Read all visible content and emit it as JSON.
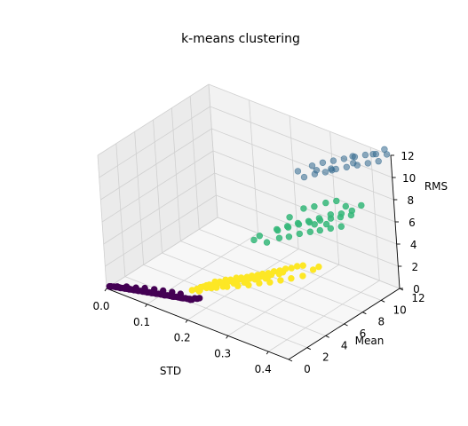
{
  "chart_data": {
    "type": "scatter",
    "projection": "3d",
    "title": "k-means clustering",
    "xlabel": "STD",
    "ylabel": "Mean",
    "zlabel": "RMS",
    "xlim": [
      0.0,
      0.45
    ],
    "ylim": [
      0,
      12
    ],
    "zlim": [
      0,
      12
    ],
    "xticks": [
      "0.0",
      "0.1",
      "0.2",
      "0.3",
      "0.4"
    ],
    "yticks": [
      "0",
      "2",
      "4",
      "6",
      "8",
      "10",
      "12"
    ],
    "zticks": [
      "0",
      "2",
      "4",
      "6",
      "8",
      "10",
      "12"
    ],
    "grid": true,
    "colors": {
      "cluster_0": "#440154",
      "cluster_1": "#31688e",
      "cluster_2": "#35b779",
      "cluster_3": "#fde725",
      "pane_left": "#ebebeb",
      "pane_back": "#f2f2f2",
      "pane_floor": "#f7f7f7",
      "grid": "#d0d0d0"
    },
    "series": [
      {
        "cluster": 0,
        "color": "#440154",
        "alpha": 1.0,
        "points": [
          [
            0.005,
            0.1,
            0.2
          ],
          [
            0.01,
            0.12,
            0.25
          ],
          [
            0.015,
            0.15,
            0.3
          ],
          [
            0.02,
            0.18,
            0.3
          ],
          [
            0.025,
            0.2,
            0.35
          ],
          [
            0.03,
            0.22,
            0.35
          ],
          [
            0.035,
            0.25,
            0.4
          ],
          [
            0.04,
            0.28,
            0.4
          ],
          [
            0.045,
            0.3,
            0.45
          ],
          [
            0.05,
            0.32,
            0.45
          ],
          [
            0.055,
            0.35,
            0.5
          ],
          [
            0.06,
            0.38,
            0.5
          ],
          [
            0.065,
            0.4,
            0.55
          ],
          [
            0.07,
            0.42,
            0.55
          ],
          [
            0.075,
            0.45,
            0.6
          ],
          [
            0.08,
            0.48,
            0.6
          ],
          [
            0.085,
            0.5,
            0.65
          ],
          [
            0.09,
            0.52,
            0.65
          ],
          [
            0.095,
            0.55,
            0.7
          ],
          [
            0.1,
            0.58,
            0.7
          ],
          [
            0.105,
            0.6,
            0.75
          ],
          [
            0.11,
            0.62,
            0.75
          ],
          [
            0.115,
            0.65,
            0.8
          ],
          [
            0.12,
            0.68,
            0.8
          ],
          [
            0.125,
            0.7,
            0.85
          ],
          [
            0.13,
            0.72,
            0.85
          ],
          [
            0.135,
            0.75,
            0.9
          ],
          [
            0.14,
            0.78,
            0.9
          ],
          [
            0.145,
            0.8,
            0.95
          ],
          [
            0.15,
            0.82,
            0.95
          ],
          [
            0.155,
            0.85,
            1.0
          ],
          [
            0.16,
            0.88,
            1.0
          ],
          [
            0.165,
            0.9,
            1.05
          ],
          [
            0.17,
            0.92,
            1.05
          ],
          [
            0.175,
            0.95,
            1.1
          ],
          [
            0.18,
            0.98,
            1.1
          ],
          [
            0.185,
            1.0,
            1.15
          ],
          [
            0.19,
            1.02,
            1.15
          ],
          [
            0.02,
            0.3,
            0.3
          ],
          [
            0.04,
            0.45,
            0.5
          ],
          [
            0.06,
            0.6,
            0.6
          ],
          [
            0.08,
            0.7,
            0.8
          ],
          [
            0.1,
            0.85,
            0.9
          ],
          [
            0.12,
            0.95,
            1.0
          ],
          [
            0.14,
            1.05,
            1.1
          ],
          [
            0.16,
            1.1,
            1.2
          ],
          [
            0.03,
            0.15,
            0.4
          ],
          [
            0.05,
            0.25,
            0.55
          ],
          [
            0.07,
            0.3,
            0.7
          ],
          [
            0.09,
            0.4,
            0.8
          ],
          [
            0.11,
            0.45,
            0.95
          ],
          [
            0.13,
            0.55,
            1.0
          ],
          [
            0.15,
            0.6,
            1.1
          ],
          [
            0.17,
            0.7,
            1.2
          ],
          [
            0.01,
            0.05,
            0.3
          ],
          [
            0.195,
            1.1,
            1.3
          ],
          [
            0.2,
            1.15,
            1.3
          ],
          [
            0.205,
            1.2,
            1.4
          ],
          [
            0.025,
            0.35,
            0.25
          ],
          [
            0.045,
            0.5,
            0.35
          ],
          [
            0.065,
            0.55,
            0.45
          ],
          [
            0.085,
            0.65,
            0.55
          ],
          [
            0.105,
            0.75,
            0.65
          ],
          [
            0.125,
            0.8,
            0.75
          ],
          [
            0.145,
            0.9,
            0.85
          ],
          [
            0.165,
            1.0,
            0.95
          ],
          [
            0.185,
            1.05,
            1.05
          ]
        ]
      },
      {
        "cluster": 3,
        "color": "#fde725",
        "alpha": 1.0,
        "points": [
          [
            0.19,
            1.6,
            1.8
          ],
          [
            0.2,
            1.9,
            2.0
          ],
          [
            0.21,
            2.1,
            2.2
          ],
          [
            0.22,
            2.3,
            2.5
          ],
          [
            0.23,
            2.4,
            2.6
          ],
          [
            0.24,
            2.6,
            2.8
          ],
          [
            0.25,
            2.7,
            2.9
          ],
          [
            0.26,
            2.9,
            3.1
          ],
          [
            0.27,
            3.0,
            3.2
          ],
          [
            0.28,
            3.2,
            3.3
          ],
          [
            0.29,
            3.3,
            3.5
          ],
          [
            0.3,
            3.5,
            3.6
          ],
          [
            0.31,
            3.6,
            3.8
          ],
          [
            0.32,
            3.8,
            3.9
          ],
          [
            0.33,
            4.0,
            4.1
          ],
          [
            0.34,
            4.2,
            4.2
          ],
          [
            0.35,
            4.4,
            4.4
          ],
          [
            0.36,
            4.6,
            4.5
          ],
          [
            0.37,
            4.8,
            4.7
          ],
          [
            0.38,
            5.0,
            4.8
          ],
          [
            0.2,
            2.2,
            1.9
          ],
          [
            0.22,
            2.6,
            2.2
          ],
          [
            0.24,
            2.9,
            2.5
          ],
          [
            0.26,
            3.2,
            2.8
          ],
          [
            0.28,
            3.5,
            3.0
          ],
          [
            0.3,
            3.8,
            3.3
          ],
          [
            0.32,
            4.1,
            3.6
          ],
          [
            0.34,
            4.5,
            3.9
          ],
          [
            0.21,
            1.8,
            2.3
          ],
          [
            0.23,
            2.0,
            2.6
          ],
          [
            0.25,
            2.3,
            2.9
          ],
          [
            0.27,
            2.5,
            3.1
          ],
          [
            0.29,
            2.8,
            3.4
          ],
          [
            0.31,
            3.1,
            3.7
          ],
          [
            0.33,
            3.4,
            4.0
          ],
          [
            0.35,
            3.7,
            4.3
          ],
          [
            0.18,
            1.5,
            1.6
          ],
          [
            0.195,
            1.7,
            1.7
          ],
          [
            0.215,
            2.0,
            2.1
          ],
          [
            0.235,
            2.5,
            2.4
          ],
          [
            0.255,
            2.8,
            2.6
          ],
          [
            0.275,
            3.1,
            2.8
          ],
          [
            0.295,
            3.4,
            3.2
          ],
          [
            0.315,
            3.7,
            3.4
          ],
          [
            0.2,
            1.6,
            2.1
          ],
          [
            0.22,
            1.9,
            2.4
          ],
          [
            0.24,
            2.2,
            2.7
          ],
          [
            0.26,
            2.6,
            3.0
          ],
          [
            0.28,
            2.9,
            3.3
          ],
          [
            0.3,
            3.2,
            3.6
          ],
          [
            0.205,
            2.0,
            1.9
          ],
          [
            0.225,
            2.2,
            2.1
          ],
          [
            0.245,
            2.5,
            2.3
          ],
          [
            0.265,
            2.8,
            2.5
          ],
          [
            0.285,
            3.1,
            2.7
          ],
          [
            0.305,
            3.4,
            3.0
          ],
          [
            0.325,
            3.7,
            3.2
          ],
          [
            0.345,
            4.0,
            3.5
          ],
          [
            0.365,
            4.3,
            3.8
          ],
          [
            0.385,
            4.7,
            4.1
          ],
          [
            0.4,
            5.2,
            4.6
          ],
          [
            0.41,
            5.4,
            4.9
          ],
          [
            0.19,
            1.8,
            1.5
          ],
          [
            0.21,
            2.3,
            1.8
          ],
          [
            0.23,
            2.7,
            2.0
          ]
        ]
      },
      {
        "cluster": 2,
        "color": "#35b779",
        "alpha": 0.85,
        "points": [
          [
            0.28,
            5.5,
            5.2
          ],
          [
            0.3,
            6.0,
            5.6
          ],
          [
            0.32,
            6.2,
            5.9
          ],
          [
            0.34,
            6.5,
            6.3
          ],
          [
            0.36,
            6.8,
            6.6
          ],
          [
            0.38,
            7.0,
            6.9
          ],
          [
            0.4,
            7.3,
            7.2
          ],
          [
            0.42,
            7.6,
            7.5
          ],
          [
            0.29,
            6.3,
            6.0
          ],
          [
            0.31,
            6.6,
            6.4
          ],
          [
            0.33,
            6.9,
            6.8
          ],
          [
            0.35,
            7.2,
            7.1
          ],
          [
            0.37,
            7.5,
            7.4
          ],
          [
            0.39,
            7.8,
            7.7
          ],
          [
            0.41,
            8.0,
            8.0
          ],
          [
            0.43,
            8.3,
            8.3
          ],
          [
            0.3,
            5.8,
            6.5
          ],
          [
            0.32,
            6.1,
            6.9
          ],
          [
            0.34,
            6.4,
            7.3
          ],
          [
            0.36,
            6.7,
            7.6
          ],
          [
            0.38,
            7.0,
            8.0
          ],
          [
            0.4,
            7.4,
            8.4
          ],
          [
            0.42,
            7.7,
            8.6
          ],
          [
            0.27,
            5.2,
            5.8
          ],
          [
            0.33,
            7.5,
            7.9
          ],
          [
            0.35,
            7.8,
            8.2
          ],
          [
            0.37,
            8.2,
            8.6
          ],
          [
            0.39,
            8.5,
            8.9
          ],
          [
            0.44,
            8.0,
            9.0
          ],
          [
            0.45,
            8.6,
            9.3
          ],
          [
            0.26,
            5.0,
            5.4
          ],
          [
            0.31,
            6.8,
            7.2
          ],
          [
            0.36,
            7.3,
            7.0
          ],
          [
            0.4,
            6.9,
            7.8
          ],
          [
            0.42,
            8.2,
            9.0
          ]
        ]
      },
      {
        "cluster": 1,
        "color": "#31688e",
        "alpha": 0.55,
        "points": [
          [
            0.3,
            9.0,
            9.5
          ],
          [
            0.32,
            9.3,
            9.9
          ],
          [
            0.34,
            9.6,
            10.2
          ],
          [
            0.36,
            9.9,
            10.6
          ],
          [
            0.38,
            10.2,
            10.9
          ],
          [
            0.4,
            10.5,
            11.2
          ],
          [
            0.42,
            10.8,
            11.5
          ],
          [
            0.44,
            11.1,
            11.8
          ],
          [
            0.31,
            9.5,
            10.4
          ],
          [
            0.33,
            9.8,
            10.8
          ],
          [
            0.35,
            10.1,
            11.1
          ],
          [
            0.37,
            10.4,
            11.4
          ],
          [
            0.39,
            10.7,
            11.7
          ],
          [
            0.41,
            11.0,
            12.0
          ],
          [
            0.43,
            11.3,
            12.2
          ],
          [
            0.29,
            8.8,
            10.0
          ],
          [
            0.34,
            10.3,
            10.0
          ],
          [
            0.38,
            10.9,
            11.5
          ],
          [
            0.42,
            11.4,
            12.0
          ],
          [
            0.45,
            11.6,
            12.3
          ],
          [
            0.36,
            9.4,
            10.9
          ],
          [
            0.4,
            10.1,
            11.6
          ],
          [
            0.33,
            9.1,
            10.5
          ],
          [
            0.44,
            11.8,
            12.5
          ]
        ]
      }
    ]
  }
}
